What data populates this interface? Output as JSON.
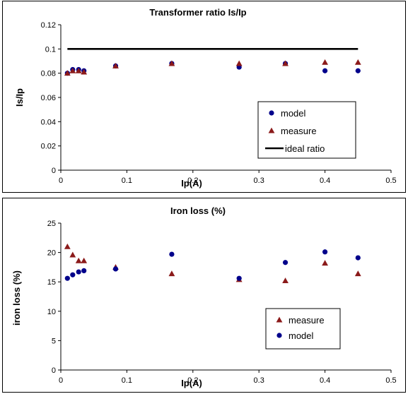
{
  "chart_data": [
    {
      "type": "scatter",
      "title": "Transformer ratio Is/Ip",
      "xlabel": "Ip(A)",
      "ylabel": "Is/Ip",
      "xlim": [
        0,
        0.5
      ],
      "ylim": [
        0,
        0.12
      ],
      "xticks": [
        "0",
        "0.1",
        "0.2",
        "0.3",
        "0.4",
        "0.5"
      ],
      "yticks": [
        "0",
        "0.02",
        "0.04",
        "0.06",
        "0.08",
        "0.1",
        "0.12"
      ],
      "legend_position": "bottom-right",
      "series": [
        {
          "name": "model",
          "marker": "circle",
          "color": "#00008b",
          "x": [
            0.01,
            0.018,
            0.027,
            0.035,
            0.083,
            0.168,
            0.27,
            0.34,
            0.4,
            0.45
          ],
          "y": [
            0.08,
            0.083,
            0.083,
            0.082,
            0.086,
            0.088,
            0.085,
            0.088,
            0.082,
            0.082
          ]
        },
        {
          "name": "measure",
          "marker": "triangle",
          "color": "#8b1a1a",
          "x": [
            0.01,
            0.018,
            0.027,
            0.035,
            0.083,
            0.168,
            0.27,
            0.34,
            0.4,
            0.45
          ],
          "y": [
            0.08,
            0.082,
            0.082,
            0.081,
            0.086,
            0.088,
            0.088,
            0.088,
            0.089,
            0.089
          ]
        },
        {
          "name": "ideal ratio",
          "marker": "line",
          "color": "#000000",
          "x": [
            0.01,
            0.45
          ],
          "y": [
            0.1,
            0.1
          ]
        }
      ]
    },
    {
      "type": "scatter",
      "title": "Iron loss (%)",
      "xlabel": "Ip(A)",
      "ylabel": "iron loss (%)",
      "xlim": [
        0,
        0.5
      ],
      "ylim": [
        0,
        25
      ],
      "xticks": [
        "0",
        "0.1",
        "0.2",
        "0.3",
        "0.4",
        "0.5"
      ],
      "yticks": [
        "0",
        "5",
        "10",
        "15",
        "20",
        "25"
      ],
      "legend_position": "bottom-right",
      "series": [
        {
          "name": "measure",
          "marker": "triangle",
          "color": "#8b1a1a",
          "x": [
            0.01,
            0.018,
            0.027,
            0.035,
            0.083,
            0.168,
            0.27,
            0.34,
            0.4,
            0.45
          ],
          "y": [
            21,
            19.6,
            18.6,
            18.6,
            17.5,
            16.4,
            15.4,
            15.2,
            18.2,
            16.4
          ]
        },
        {
          "name": "model",
          "marker": "circle",
          "color": "#00008b",
          "x": [
            0.01,
            0.018,
            0.027,
            0.035,
            0.083,
            0.168,
            0.27,
            0.34,
            0.4,
            0.45
          ],
          "y": [
            15.6,
            16.2,
            16.7,
            16.9,
            17.2,
            19.7,
            15.6,
            18.3,
            20.1,
            19.1
          ]
        }
      ]
    }
  ]
}
